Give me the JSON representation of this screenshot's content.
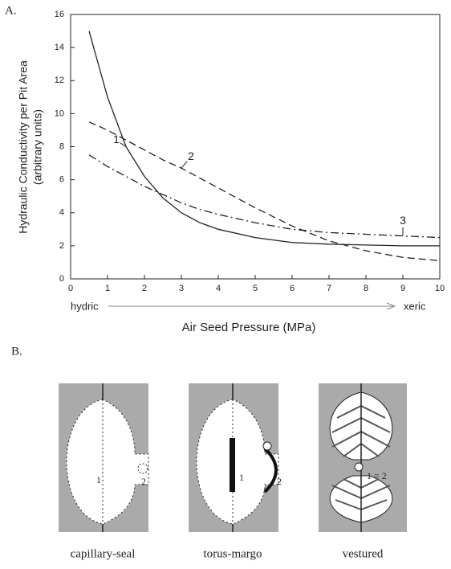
{
  "chart_data": {
    "type": "line",
    "panel_label": "A.",
    "ylabel": [
      "Hydraulic Conductivity per Pit Area",
      "(arbitrary units)"
    ],
    "xlabel": "Air Seed Pressure (MPa)",
    "x_annotations": [
      "hydric",
      "xeric"
    ],
    "x": [
      0.5,
      1,
      1.5,
      2,
      2.5,
      3,
      3.5,
      4,
      5,
      6,
      7,
      8,
      9,
      10
    ],
    "series": [
      {
        "name": "1",
        "color": "#222",
        "dash": "solid",
        "values": [
          15,
          11,
          8,
          6.2,
          4.9,
          4,
          3.4,
          3,
          2.5,
          2.2,
          2.1,
          2.05,
          2,
          2
        ]
      },
      {
        "name": "2",
        "color": "#222",
        "dash": "dashed",
        "values": [
          9.5,
          9,
          8.4,
          7.8,
          7.2,
          6.7,
          6.1,
          5.5,
          4.3,
          3.2,
          2.3,
          1.7,
          1.3,
          1.1
        ]
      },
      {
        "name": "3",
        "color": "#222",
        "dash": "dashdot",
        "values": [
          7.5,
          6.8,
          6.2,
          5.6,
          5.1,
          4.6,
          4.2,
          3.9,
          3.4,
          3,
          2.8,
          2.7,
          2.6,
          2.5
        ]
      }
    ],
    "xlim": [
      0,
      10
    ],
    "ylim": [
      0,
      16
    ],
    "xticks": [
      0,
      1,
      2,
      3,
      4,
      5,
      6,
      7,
      8,
      9,
      10
    ],
    "yticks": [
      0,
      2,
      4,
      6,
      8,
      10,
      12,
      14,
      16
    ]
  },
  "diagram": {
    "panel_label": "B.",
    "pits": [
      {
        "label": "capillary-seal",
        "markers": [
          "1",
          "2"
        ]
      },
      {
        "label": "torus-margo",
        "markers": [
          "1",
          "2"
        ]
      },
      {
        "label": "vestured",
        "markers": [
          "1 = 2"
        ]
      }
    ]
  }
}
